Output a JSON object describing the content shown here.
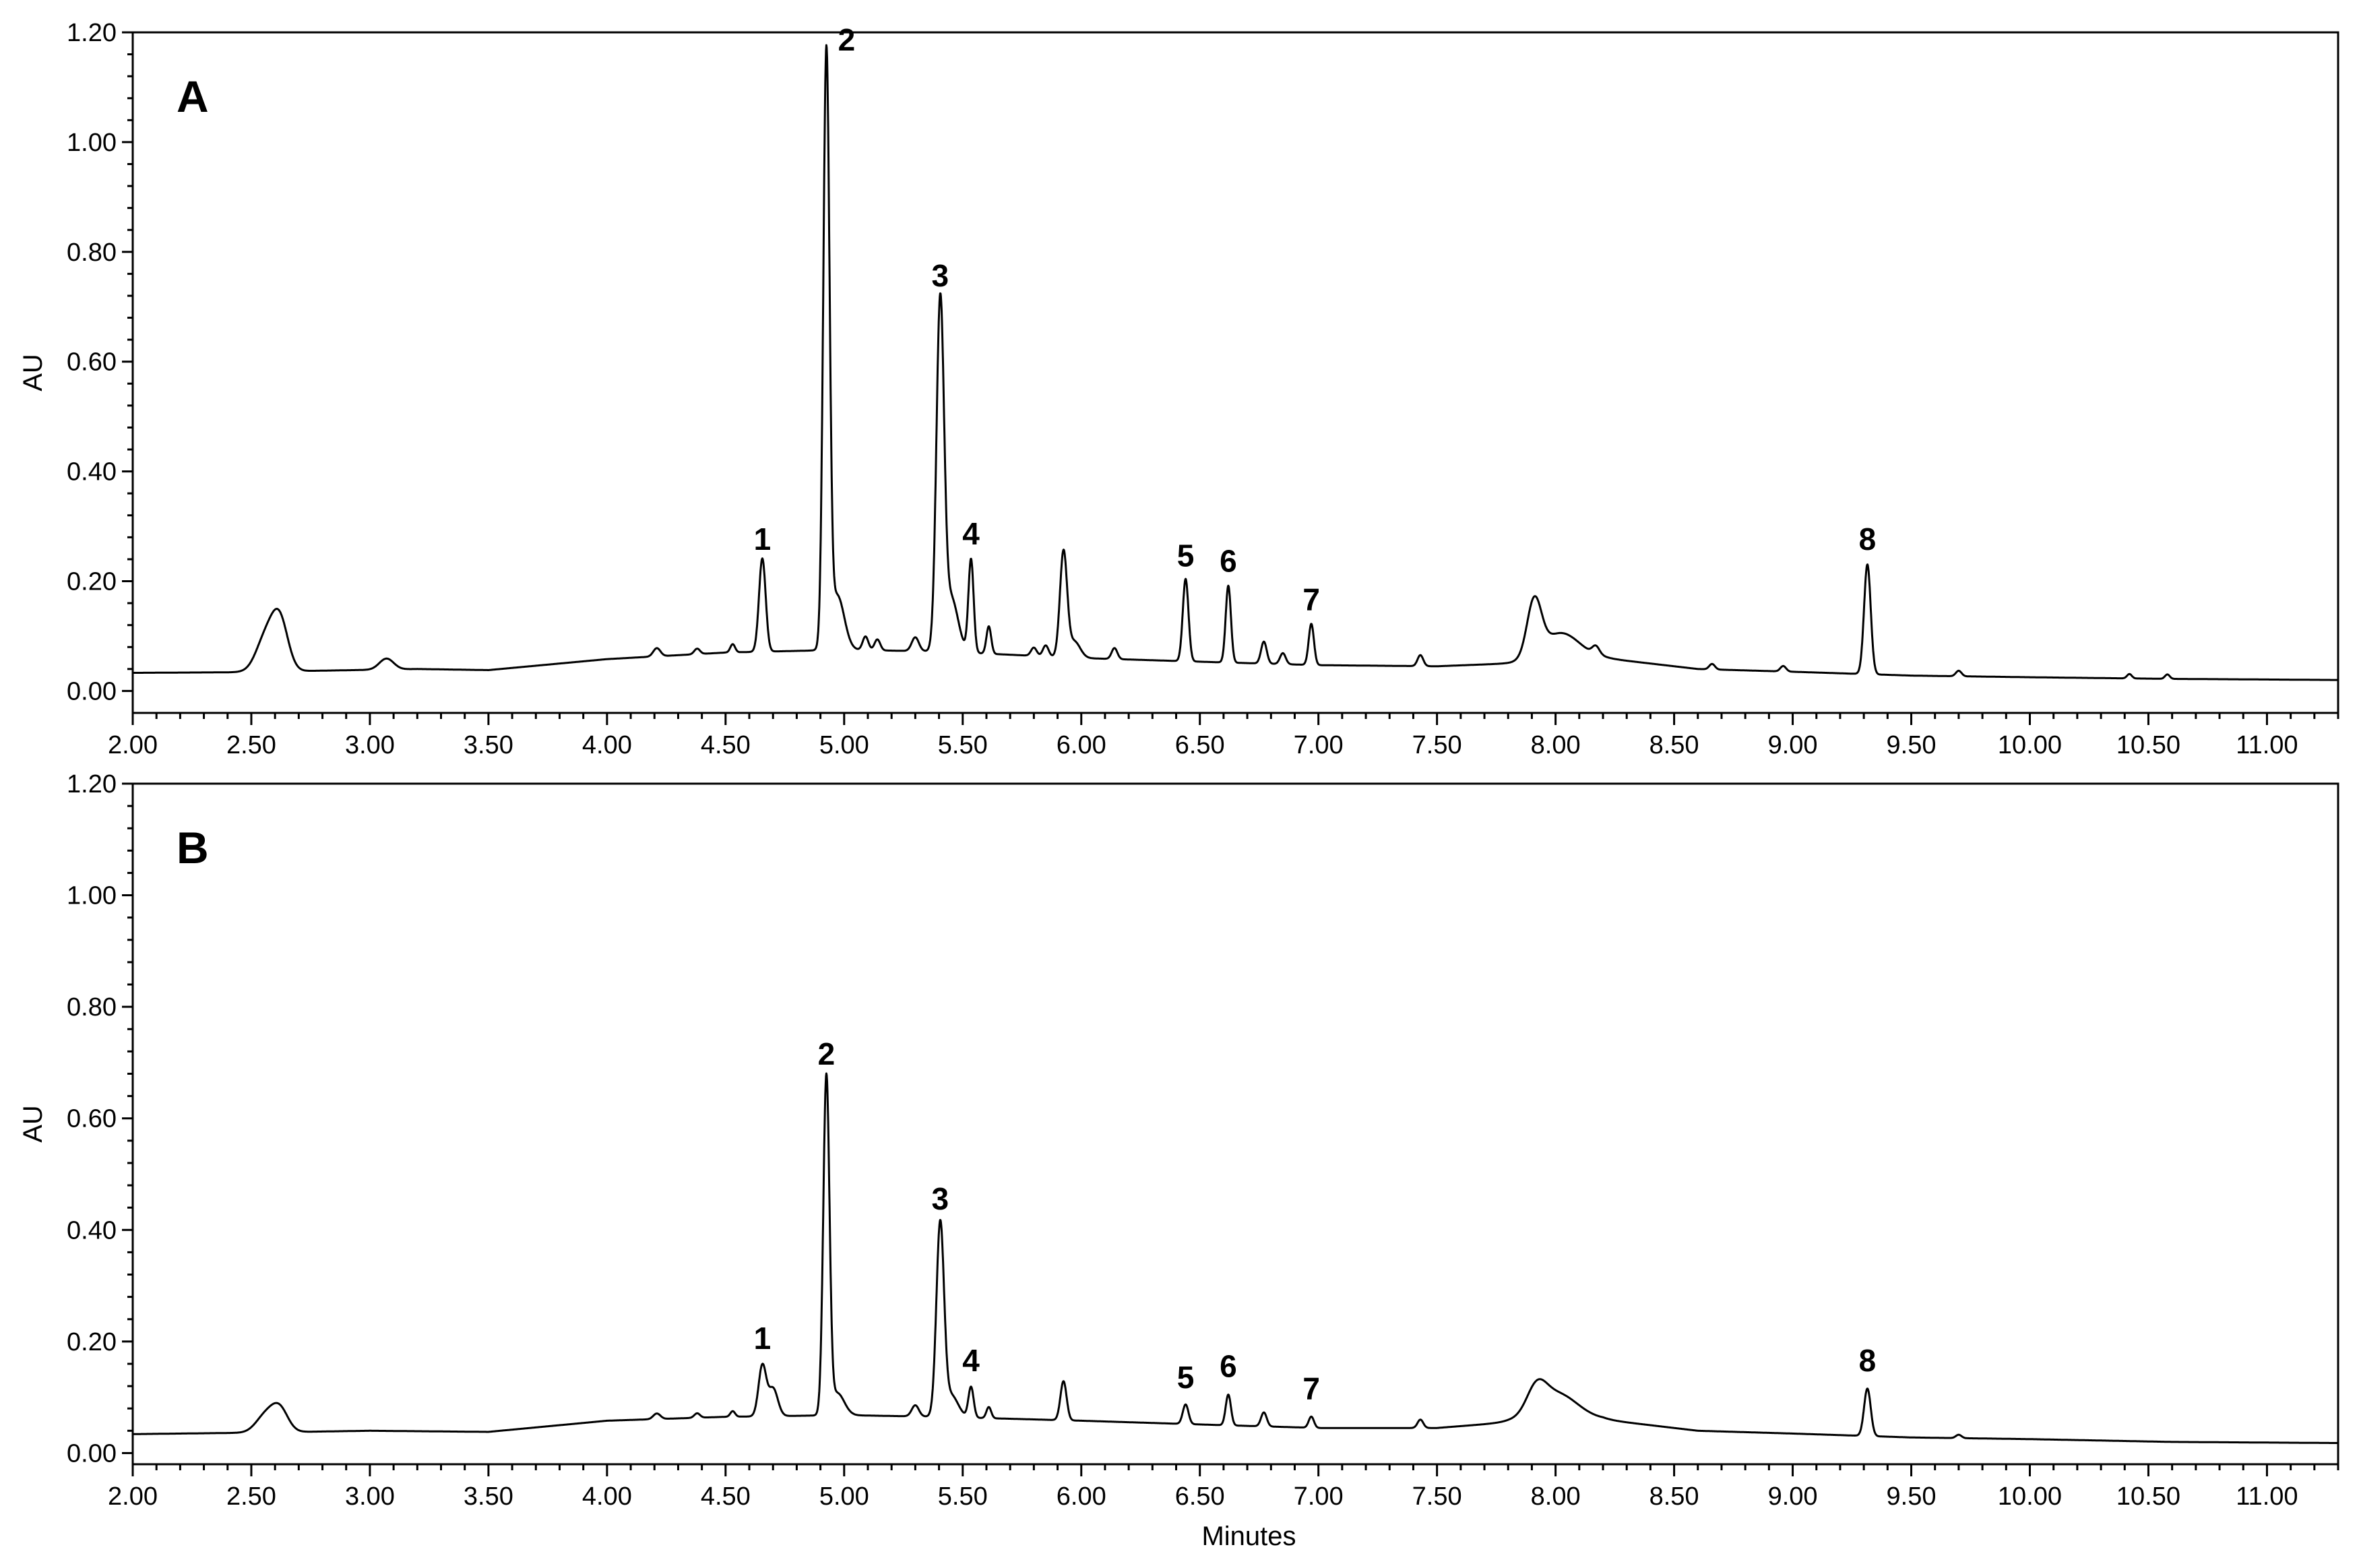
{
  "chart_data": [
    {
      "type": "line",
      "panel_label": "A",
      "ylabel": "AU",
      "xlabel": "",
      "xlim": [
        2.0,
        11.3
      ],
      "ylim": [
        -0.04,
        1.2
      ],
      "x_ticks": [
        "2.00",
        "2.50",
        "3.00",
        "3.50",
        "4.00",
        "4.50",
        "5.00",
        "5.50",
        "6.00",
        "6.50",
        "7.00",
        "7.50",
        "8.00",
        "8.50",
        "9.00",
        "9.50",
        "10.00",
        "10.50",
        "11.00"
      ],
      "y_ticks": [
        "0.00",
        "0.20",
        "0.40",
        "0.60",
        "0.80",
        "1.00",
        "1.20"
      ],
      "baseline": [
        [
          2.0,
          0.033
        ],
        [
          2.4,
          0.034
        ],
        [
          3.2,
          0.04
        ],
        [
          3.5,
          0.038
        ],
        [
          4.0,
          0.058
        ],
        [
          4.5,
          0.07
        ],
        [
          5.0,
          0.075
        ],
        [
          5.4,
          0.072
        ],
        [
          6.0,
          0.06
        ],
        [
          6.6,
          0.052
        ],
        [
          7.0,
          0.047
        ],
        [
          7.5,
          0.045
        ],
        [
          7.8,
          0.05
        ],
        [
          8.2,
          0.06
        ],
        [
          8.6,
          0.04
        ],
        [
          9.0,
          0.035
        ],
        [
          9.5,
          0.028
        ],
        [
          10.0,
          0.025
        ],
        [
          10.6,
          0.022
        ],
        [
          11.3,
          0.02
        ]
      ],
      "peaks": [
        {
          "x": 2.56,
          "h": 0.06,
          "w": 0.04
        },
        {
          "x": 2.62,
          "h": 0.09,
          "w": 0.035
        },
        {
          "x": 3.07,
          "h": 0.02,
          "w": 0.03
        },
        {
          "x": 4.21,
          "h": 0.015,
          "w": 0.015
        },
        {
          "x": 4.38,
          "h": 0.01,
          "w": 0.012
        },
        {
          "x": 4.53,
          "h": 0.015,
          "w": 0.01
        },
        {
          "x": 4.655,
          "h": 0.17,
          "w": 0.014
        },
        {
          "x": 4.925,
          "h": 1.07,
          "w": 0.013
        },
        {
          "x": 4.97,
          "h": 0.1,
          "w": 0.03
        },
        {
          "x": 5.09,
          "h": 0.025,
          "w": 0.012
        },
        {
          "x": 5.14,
          "h": 0.02,
          "w": 0.012
        },
        {
          "x": 5.3,
          "h": 0.025,
          "w": 0.015
        },
        {
          "x": 5.405,
          "h": 0.62,
          "w": 0.016
        },
        {
          "x": 5.45,
          "h": 0.1,
          "w": 0.03
        },
        {
          "x": 5.535,
          "h": 0.17,
          "w": 0.011
        },
        {
          "x": 5.61,
          "h": 0.05,
          "w": 0.01
        },
        {
          "x": 5.8,
          "h": 0.015,
          "w": 0.012
        },
        {
          "x": 5.85,
          "h": 0.02,
          "w": 0.012
        },
        {
          "x": 5.925,
          "h": 0.19,
          "w": 0.015
        },
        {
          "x": 5.97,
          "h": 0.03,
          "w": 0.025
        },
        {
          "x": 6.14,
          "h": 0.02,
          "w": 0.012
        },
        {
          "x": 6.44,
          "h": 0.15,
          "w": 0.012
        },
        {
          "x": 6.62,
          "h": 0.14,
          "w": 0.011
        },
        {
          "x": 6.77,
          "h": 0.04,
          "w": 0.012
        },
        {
          "x": 6.85,
          "h": 0.02,
          "w": 0.012
        },
        {
          "x": 6.97,
          "h": 0.075,
          "w": 0.011
        },
        {
          "x": 7.43,
          "h": 0.02,
          "w": 0.012
        },
        {
          "x": 7.91,
          "h": 0.1,
          "w": 0.03
        },
        {
          "x": 8.02,
          "h": 0.05,
          "w": 0.08
        },
        {
          "x": 8.17,
          "h": 0.015,
          "w": 0.015
        },
        {
          "x": 8.66,
          "h": 0.01,
          "w": 0.012
        },
        {
          "x": 8.96,
          "h": 0.01,
          "w": 0.012
        },
        {
          "x": 9.315,
          "h": 0.2,
          "w": 0.014
        },
        {
          "x": 9.7,
          "h": 0.01,
          "w": 0.012
        },
        {
          "x": 10.42,
          "h": 0.008,
          "w": 0.01
        },
        {
          "x": 10.58,
          "h": 0.008,
          "w": 0.01
        }
      ],
      "peak_labels": [
        {
          "label": "1",
          "x": 4.655,
          "y": 0.23
        },
        {
          "label": "2",
          "x": 4.925,
          "y": 1.14
        },
        {
          "label": "3",
          "x": 5.405,
          "y": 0.71
        },
        {
          "label": "4",
          "x": 5.535,
          "y": 0.24
        },
        {
          "label": "5",
          "x": 6.44,
          "y": 0.2
        },
        {
          "label": "6",
          "x": 6.62,
          "y": 0.19
        },
        {
          "label": "7",
          "x": 6.97,
          "y": 0.12
        },
        {
          "label": "8",
          "x": 9.315,
          "y": 0.23
        }
      ]
    },
    {
      "type": "line",
      "panel_label": "B",
      "ylabel": "AU",
      "xlabel": "Minutes",
      "xlim": [
        2.0,
        11.3
      ],
      "ylim": [
        -0.02,
        1.2
      ],
      "x_ticks": [
        "2.00",
        "2.50",
        "3.00",
        "3.50",
        "4.00",
        "4.50",
        "5.00",
        "5.50",
        "6.00",
        "6.50",
        "7.00",
        "7.50",
        "8.00",
        "8.50",
        "9.00",
        "9.50",
        "10.00",
        "10.50",
        "11.00"
      ],
      "y_ticks": [
        "0.00",
        "0.20",
        "0.40",
        "0.60",
        "0.80",
        "1.00",
        "1.20"
      ],
      "baseline": [
        [
          2.0,
          0.034
        ],
        [
          2.4,
          0.036
        ],
        [
          3.0,
          0.04
        ],
        [
          3.5,
          0.038
        ],
        [
          4.0,
          0.058
        ],
        [
          4.5,
          0.065
        ],
        [
          5.0,
          0.068
        ],
        [
          5.4,
          0.065
        ],
        [
          6.0,
          0.058
        ],
        [
          6.6,
          0.05
        ],
        [
          7.0,
          0.045
        ],
        [
          7.5,
          0.045
        ],
        [
          7.8,
          0.055
        ],
        [
          8.2,
          0.06
        ],
        [
          8.6,
          0.04
        ],
        [
          9.0,
          0.035
        ],
        [
          9.5,
          0.028
        ],
        [
          10.0,
          0.025
        ],
        [
          10.6,
          0.02
        ],
        [
          11.3,
          0.018
        ]
      ],
      "peaks": [
        {
          "x": 2.56,
          "h": 0.03,
          "w": 0.04
        },
        {
          "x": 2.62,
          "h": 0.04,
          "w": 0.035
        },
        {
          "x": 4.21,
          "h": 0.01,
          "w": 0.015
        },
        {
          "x": 4.38,
          "h": 0.008,
          "w": 0.012
        },
        {
          "x": 4.53,
          "h": 0.01,
          "w": 0.01
        },
        {
          "x": 4.655,
          "h": 0.09,
          "w": 0.016
        },
        {
          "x": 4.7,
          "h": 0.05,
          "w": 0.02
        },
        {
          "x": 4.925,
          "h": 0.6,
          "w": 0.013
        },
        {
          "x": 4.97,
          "h": 0.04,
          "w": 0.03
        },
        {
          "x": 5.3,
          "h": 0.02,
          "w": 0.015
        },
        {
          "x": 5.405,
          "h": 0.34,
          "w": 0.016
        },
        {
          "x": 5.45,
          "h": 0.04,
          "w": 0.03
        },
        {
          "x": 5.535,
          "h": 0.055,
          "w": 0.011
        },
        {
          "x": 5.61,
          "h": 0.02,
          "w": 0.01
        },
        {
          "x": 5.925,
          "h": 0.07,
          "w": 0.013
        },
        {
          "x": 6.44,
          "h": 0.035,
          "w": 0.012
        },
        {
          "x": 6.62,
          "h": 0.055,
          "w": 0.011
        },
        {
          "x": 6.77,
          "h": 0.025,
          "w": 0.012
        },
        {
          "x": 6.97,
          "h": 0.02,
          "w": 0.011
        },
        {
          "x": 7.43,
          "h": 0.015,
          "w": 0.012
        },
        {
          "x": 7.92,
          "h": 0.04,
          "w": 0.04
        },
        {
          "x": 8.0,
          "h": 0.05,
          "w": 0.09
        },
        {
          "x": 9.315,
          "h": 0.085,
          "w": 0.014
        },
        {
          "x": 9.7,
          "h": 0.006,
          "w": 0.012
        }
      ],
      "peak_labels": [
        {
          "label": "1",
          "x": 4.655,
          "y": 0.16
        },
        {
          "label": "2",
          "x": 4.925,
          "y": 0.67
        },
        {
          "label": "3",
          "x": 5.405,
          "y": 0.41
        },
        {
          "label": "4",
          "x": 5.535,
          "y": 0.12
        },
        {
          "label": "5",
          "x": 6.44,
          "y": 0.09
        },
        {
          "label": "6",
          "x": 6.62,
          "y": 0.11
        },
        {
          "label": "7",
          "x": 6.97,
          "y": 0.07
        },
        {
          "label": "8",
          "x": 9.315,
          "y": 0.12
        }
      ]
    }
  ]
}
